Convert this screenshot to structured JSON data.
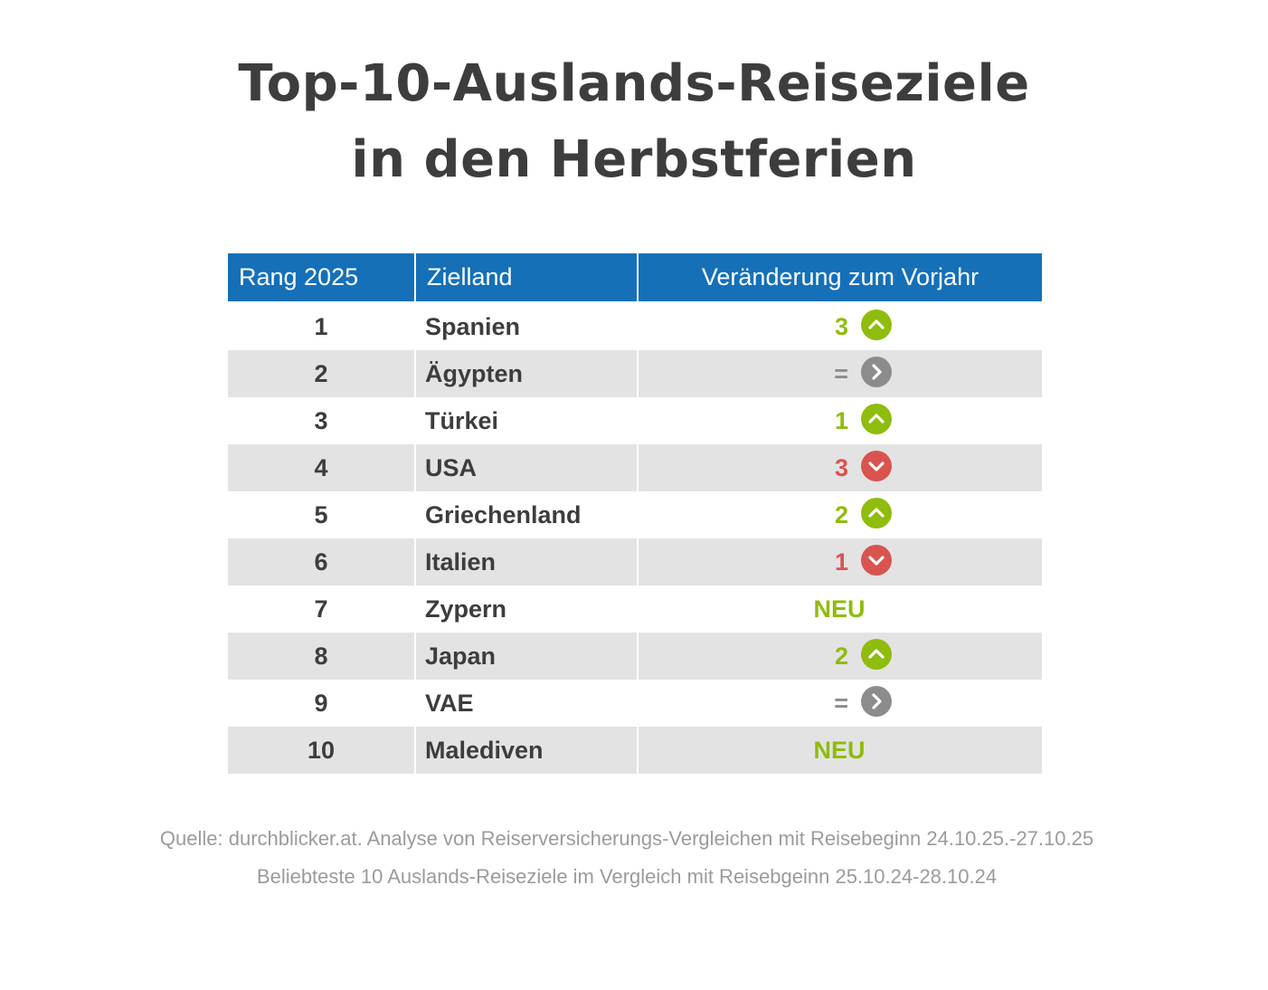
{
  "title": {
    "line1": "Top-10-Auslands-Reiseziele",
    "line2": "in den Herbstferien"
  },
  "colors": {
    "header_bg": "#1570b8",
    "row_alt_bg": "#e3e3e3",
    "up": "#8fbc0d",
    "down": "#d9534f",
    "same": "#8c8c8c",
    "text": "#3d3d3d",
    "source_text": "#9b9b9b"
  },
  "chart_data": {
    "type": "table",
    "columns": [
      "Rang 2025",
      "Zielland",
      "Veränderung zum Vorjahr"
    ],
    "rows": [
      {
        "rank": "1",
        "country": "Spanien",
        "change": "3",
        "direction": "up",
        "icon": "chevron-up-icon"
      },
      {
        "rank": "2",
        "country": "Ägypten",
        "change": "=",
        "direction": "same",
        "icon": "chevron-right-icon"
      },
      {
        "rank": "3",
        "country": "Türkei",
        "change": "1",
        "direction": "up",
        "icon": "chevron-up-icon"
      },
      {
        "rank": "4",
        "country": "USA",
        "change": "3",
        "direction": "down",
        "icon": "chevron-down-icon"
      },
      {
        "rank": "5",
        "country": "Griechenland",
        "change": "2",
        "direction": "up",
        "icon": "chevron-up-icon"
      },
      {
        "rank": "6",
        "country": "Italien",
        "change": "1",
        "direction": "down",
        "icon": "chevron-down-icon"
      },
      {
        "rank": "7",
        "country": "Zypern",
        "change": "NEU",
        "direction": "new",
        "icon": ""
      },
      {
        "rank": "8",
        "country": "Japan",
        "change": "2",
        "direction": "up",
        "icon": "chevron-up-icon"
      },
      {
        "rank": "9",
        "country": "VAE",
        "change": "=",
        "direction": "same",
        "icon": "chevron-right-icon"
      },
      {
        "rank": "10",
        "country": "Malediven",
        "change": "NEU",
        "direction": "new",
        "icon": ""
      }
    ]
  },
  "source": {
    "line1": "Quelle: durchblicker.at. Analyse von Reiserversicherungs-Vergleichen mit Reisebeginn 24.10.25.-27.10.25",
    "line2": "Beliebteste 10 Auslands-Reiseziele im Vergleich mit Reisebgeinn 25.10.24-28.10.24"
  }
}
